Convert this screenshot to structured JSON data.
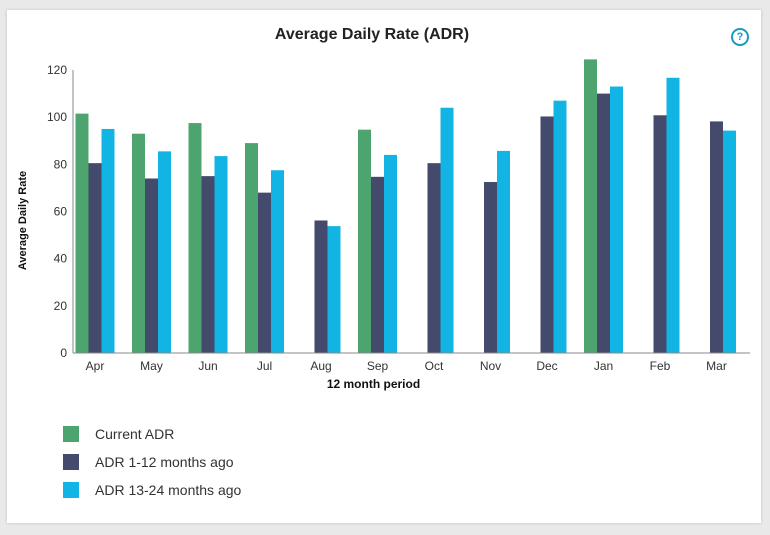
{
  "help": {
    "glyph": "?"
  },
  "chart_data": {
    "type": "bar",
    "title": "Average Daily Rate (ADR)",
    "xlabel": "12 month period",
    "ylabel": "Average Daily Rate",
    "ylim": [
      0,
      120
    ],
    "yticks": [
      "0",
      "20",
      "40",
      "60",
      "80",
      "100",
      "120"
    ],
    "categories": [
      "Apr",
      "May",
      "Jun",
      "Jul",
      "Aug",
      "Sep",
      "Oct",
      "Nov",
      "Dec",
      "Jan",
      "Feb",
      "Mar"
    ],
    "series": [
      {
        "name": "Current ADR",
        "color": "#4ea46e",
        "values": [
          101.5,
          93,
          97.5,
          89,
          null,
          94.7,
          null,
          null,
          null,
          124.5,
          null,
          null
        ]
      },
      {
        "name": "ADR 1-12 months ago",
        "color": "#434a6b",
        "values": [
          80.5,
          74,
          75,
          68,
          56.2,
          74.7,
          80.5,
          72.5,
          100.3,
          110,
          100.8,
          98.2
        ]
      },
      {
        "name": "ADR 13-24 months ago",
        "color": "#12b4e4",
        "values": [
          95,
          85.5,
          83.5,
          77.5,
          53.8,
          84,
          104,
          85.7,
          107,
          113,
          116.7,
          94.3
        ]
      }
    ],
    "legend": "bottom-left",
    "grid": false
  }
}
